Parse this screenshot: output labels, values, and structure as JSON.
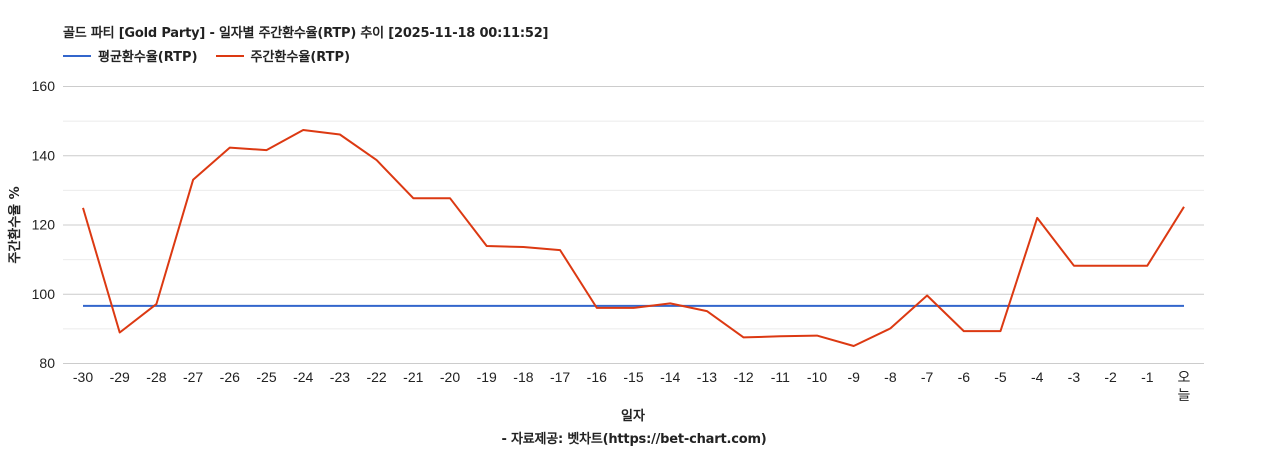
{
  "header": {
    "title": "골드 파티 [Gold Party] - 일자별 주간환수율(RTP) 추이 [2025-11-18 00:11:52]"
  },
  "legend": [
    {
      "label": "평균환수율(RTP)",
      "color": "#3366cc"
    },
    {
      "label": "주간환수율(RTP)",
      "color": "#dc3912"
    }
  ],
  "footer": {
    "source": "- 자료제공: 벳차트(https://bet-chart.com)"
  },
  "chart_data": {
    "type": "line",
    "title": "골드 파티 [Gold Party] - 일자별 주간환수율(RTP) 추이 [2025-11-18 00:11:52]",
    "xlabel": "일자",
    "ylabel": "주간환수율 %",
    "ylim": [
      80,
      160
    ],
    "yticks": [
      80,
      100,
      120,
      140,
      160
    ],
    "minor_gridlines": [
      90,
      110,
      130,
      150
    ],
    "grid": true,
    "legend_position": "top",
    "categories": [
      "-30",
      "-29",
      "-28",
      "-27",
      "-26",
      "-25",
      "-24",
      "-23",
      "-22",
      "-21",
      "-20",
      "-19",
      "-18",
      "-17",
      "-16",
      "-15",
      "-14",
      "-13",
      "-12",
      "-11",
      "-10",
      "-9",
      "-8",
      "-7",
      "-6",
      "-5",
      "-4",
      "-3",
      "-2",
      "-1",
      "오늘"
    ],
    "series": [
      {
        "name": "평균환수율(RTP)",
        "color": "#3366cc",
        "values": [
          96.5,
          96.5,
          96.5,
          96.5,
          96.5,
          96.5,
          96.5,
          96.5,
          96.5,
          96.5,
          96.5,
          96.5,
          96.5,
          96.5,
          96.5,
          96.5,
          96.5,
          96.5,
          96.5,
          96.5,
          96.5,
          96.5,
          96.5,
          96.5,
          96.5,
          96.5,
          96.5,
          96.5,
          96.5,
          96.5,
          96.5
        ]
      },
      {
        "name": "주간환수율(RTP)",
        "color": "#dc3912",
        "values": [
          124.8,
          88.8,
          97.0,
          132.9,
          142.2,
          141.5,
          147.3,
          146.0,
          138.6,
          127.6,
          127.6,
          113.8,
          113.5,
          112.6,
          95.9,
          95.9,
          97.2,
          95.0,
          87.4,
          87.7,
          87.9,
          84.9,
          90.0,
          99.5,
          89.2,
          89.2,
          121.9,
          108.1,
          108.1,
          108.1,
          125.1
        ]
      }
    ]
  }
}
